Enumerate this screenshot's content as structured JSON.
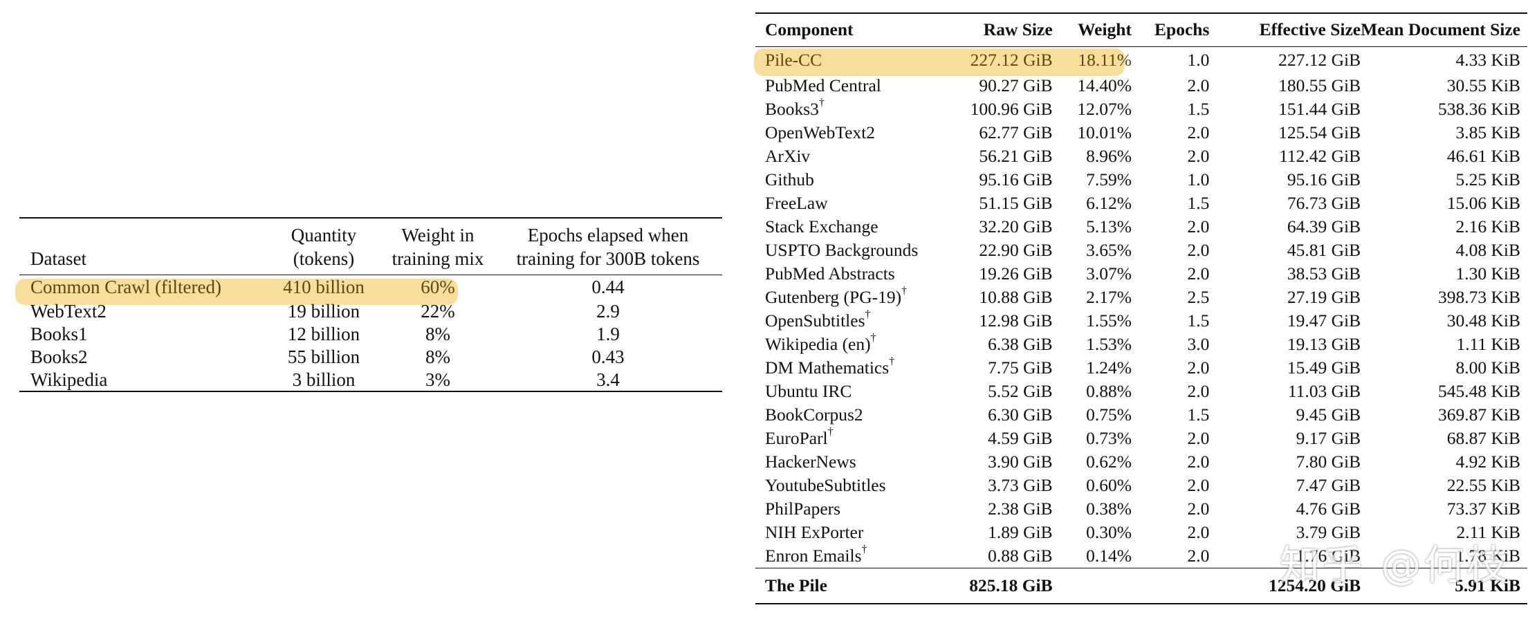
{
  "left_table": {
    "headers": {
      "dataset": "Dataset",
      "quantity_line1": "Quantity",
      "quantity_line2": "(tokens)",
      "weight_line1": "Weight in",
      "weight_line2": "training mix",
      "epochs_line1": "Epochs elapsed when",
      "epochs_line2": "training for 300B tokens"
    },
    "rows": [
      {
        "dataset": "Common Crawl (filtered)",
        "quantity": "410 billion",
        "weight": "60%",
        "epochs": "0.44"
      },
      {
        "dataset": "WebText2",
        "quantity": "19 billion",
        "weight": "22%",
        "epochs": "2.9"
      },
      {
        "dataset": "Books1",
        "quantity": "12 billion",
        "weight": "8%",
        "epochs": "1.9"
      },
      {
        "dataset": "Books2",
        "quantity": "55 billion",
        "weight": "8%",
        "epochs": "0.43"
      },
      {
        "dataset": "Wikipedia",
        "quantity": "3 billion",
        "weight": "3%",
        "epochs": "3.4"
      }
    ]
  },
  "right_table": {
    "headers": {
      "component": "Component",
      "raw_size": "Raw Size",
      "weight": "Weight",
      "epochs": "Epochs",
      "effective_size": "Effective Size",
      "mean_doc_size": "Mean Document Size"
    },
    "dagger": "†",
    "rows": [
      {
        "component": "Pile-CC",
        "dagger": "",
        "raw": "227.12 GiB",
        "weight": "18.11%",
        "epochs": "1.0",
        "effective": "227.12 GiB",
        "mean": "4.33 KiB"
      },
      {
        "component": "PubMed Central",
        "dagger": "",
        "raw": "90.27 GiB",
        "weight": "14.40%",
        "epochs": "2.0",
        "effective": "180.55 GiB",
        "mean": "30.55 KiB"
      },
      {
        "component": "Books3",
        "dagger": "†",
        "raw": "100.96 GiB",
        "weight": "12.07%",
        "epochs": "1.5",
        "effective": "151.44 GiB",
        "mean": "538.36 KiB"
      },
      {
        "component": "OpenWebText2",
        "dagger": "",
        "raw": "62.77 GiB",
        "weight": "10.01%",
        "epochs": "2.0",
        "effective": "125.54 GiB",
        "mean": "3.85 KiB"
      },
      {
        "component": "ArXiv",
        "dagger": "",
        "raw": "56.21 GiB",
        "weight": "8.96%",
        "epochs": "2.0",
        "effective": "112.42 GiB",
        "mean": "46.61 KiB"
      },
      {
        "component": "Github",
        "dagger": "",
        "raw": "95.16 GiB",
        "weight": "7.59%",
        "epochs": "1.0",
        "effective": "95.16 GiB",
        "mean": "5.25 KiB"
      },
      {
        "component": "FreeLaw",
        "dagger": "",
        "raw": "51.15 GiB",
        "weight": "6.12%",
        "epochs": "1.5",
        "effective": "76.73 GiB",
        "mean": "15.06 KiB"
      },
      {
        "component": "Stack Exchange",
        "dagger": "",
        "raw": "32.20 GiB",
        "weight": "5.13%",
        "epochs": "2.0",
        "effective": "64.39 GiB",
        "mean": "2.16 KiB"
      },
      {
        "component": "USPTO Backgrounds",
        "dagger": "",
        "raw": "22.90 GiB",
        "weight": "3.65%",
        "epochs": "2.0",
        "effective": "45.81 GiB",
        "mean": "4.08 KiB"
      },
      {
        "component": "PubMed Abstracts",
        "dagger": "",
        "raw": "19.26 GiB",
        "weight": "3.07%",
        "epochs": "2.0",
        "effective": "38.53 GiB",
        "mean": "1.30 KiB"
      },
      {
        "component": "Gutenberg (PG-19)",
        "dagger": "†",
        "raw": "10.88 GiB",
        "weight": "2.17%",
        "epochs": "2.5",
        "effective": "27.19 GiB",
        "mean": "398.73 KiB"
      },
      {
        "component": "OpenSubtitles",
        "dagger": "†",
        "raw": "12.98 GiB",
        "weight": "1.55%",
        "epochs": "1.5",
        "effective": "19.47 GiB",
        "mean": "30.48 KiB"
      },
      {
        "component": "Wikipedia (en)",
        "dagger": "†",
        "raw": "6.38 GiB",
        "weight": "1.53%",
        "epochs": "3.0",
        "effective": "19.13 GiB",
        "mean": "1.11 KiB"
      },
      {
        "component": "DM Mathematics",
        "dagger": "†",
        "raw": "7.75 GiB",
        "weight": "1.24%",
        "epochs": "2.0",
        "effective": "15.49 GiB",
        "mean": "8.00 KiB"
      },
      {
        "component": "Ubuntu IRC",
        "dagger": "",
        "raw": "5.52 GiB",
        "weight": "0.88%",
        "epochs": "2.0",
        "effective": "11.03 GiB",
        "mean": "545.48 KiB"
      },
      {
        "component": "BookCorpus2",
        "dagger": "",
        "raw": "6.30 GiB",
        "weight": "0.75%",
        "epochs": "1.5",
        "effective": "9.45 GiB",
        "mean": "369.87 KiB"
      },
      {
        "component": "EuroParl",
        "dagger": "†",
        "raw": "4.59 GiB",
        "weight": "0.73%",
        "epochs": "2.0",
        "effective": "9.17 GiB",
        "mean": "68.87 KiB"
      },
      {
        "component": "HackerNews",
        "dagger": "",
        "raw": "3.90 GiB",
        "weight": "0.62%",
        "epochs": "2.0",
        "effective": "7.80 GiB",
        "mean": "4.92 KiB"
      },
      {
        "component": "YoutubeSubtitles",
        "dagger": "",
        "raw": "3.73 GiB",
        "weight": "0.60%",
        "epochs": "2.0",
        "effective": "7.47 GiB",
        "mean": "22.55 KiB"
      },
      {
        "component": "PhilPapers",
        "dagger": "",
        "raw": "2.38 GiB",
        "weight": "0.38%",
        "epochs": "2.0",
        "effective": "4.76 GiB",
        "mean": "73.37 KiB"
      },
      {
        "component": "NIH ExPorter",
        "dagger": "",
        "raw": "1.89 GiB",
        "weight": "0.30%",
        "epochs": "2.0",
        "effective": "3.79 GiB",
        "mean": "2.11 KiB"
      },
      {
        "component": "Enron Emails",
        "dagger": "†",
        "raw": "0.88 GiB",
        "weight": "0.14%",
        "epochs": "2.0",
        "effective": "1.76 GiB",
        "mean": "1.78 KiB"
      }
    ],
    "total": {
      "component": "The Pile",
      "raw": "825.18 GiB",
      "weight": "",
      "epochs": "",
      "effective": "1254.20 GiB",
      "mean": "5.91 KiB"
    }
  },
  "watermark": "知乎 @何枝",
  "colors": {
    "highlight": "#f7dc96",
    "text": "#111111"
  }
}
